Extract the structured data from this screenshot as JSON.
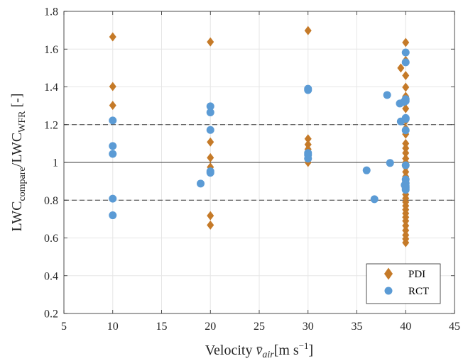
{
  "chart_data": {
    "type": "scatter",
    "xlim": [
      5,
      45
    ],
    "ylim": [
      0.2,
      1.8
    ],
    "x_ticks": [
      5,
      10,
      15,
      20,
      25,
      30,
      35,
      40,
      45
    ],
    "y_ticks": [
      0.2,
      0.4,
      0.6,
      0.8,
      1.0,
      1.2,
      1.4,
      1.6,
      1.8
    ],
    "x_tick_labels": [
      "5",
      "10",
      "15",
      "20",
      "25",
      "30",
      "35",
      "40",
      "45"
    ],
    "y_tick_labels": [
      "0.2",
      "0.4",
      "0.6",
      "0.8",
      "1",
      "1.2",
      "1.4",
      "1.6",
      "1.8"
    ],
    "grid": true,
    "xlabel": {
      "prefix": "Velocity ",
      "symbol": "v̄",
      "subscript": "air",
      "unit": "[m s",
      "unit_exp": "−1",
      "unit_close": "]"
    },
    "ylabel": {
      "part1": "LWC",
      "sub1": "compare",
      "part2": "/LWC",
      "sub2": "WFR",
      "part3": " [-]"
    },
    "reference_lines": [
      {
        "y": 1.0,
        "style": "solid"
      },
      {
        "y": 1.2,
        "style": "dashed"
      },
      {
        "y": 0.8,
        "style": "dashed"
      }
    ],
    "legend_position": "bottom-right",
    "series": [
      {
        "name": "PDI",
        "marker": "diamond",
        "color": "#c57a28",
        "points": [
          [
            10,
            1.665
          ],
          [
            10,
            1.402
          ],
          [
            10,
            1.302
          ],
          [
            20,
            1.638
          ],
          [
            20,
            1.108
          ],
          [
            20,
            1.025
          ],
          [
            20,
            0.975
          ],
          [
            20,
            0.718
          ],
          [
            20,
            0.668
          ],
          [
            30,
            1.698
          ],
          [
            30,
            1.125
          ],
          [
            30,
            1.095
          ],
          [
            30,
            1.07
          ],
          [
            30,
            1.048
          ],
          [
            30,
            1.028
          ],
          [
            30,
            1.0
          ],
          [
            39.5,
            1.5
          ],
          [
            40,
            1.635
          ],
          [
            40,
            1.54
          ],
          [
            40,
            1.46
          ],
          [
            40,
            1.398
          ],
          [
            40,
            1.35
          ],
          [
            40,
            1.32
          ],
          [
            40,
            1.285
          ],
          [
            40,
            1.22
          ],
          [
            40,
            1.18
          ],
          [
            40,
            1.15
          ],
          [
            40,
            1.1
          ],
          [
            40,
            1.075
          ],
          [
            40,
            1.05
          ],
          [
            40,
            1.02
          ],
          [
            40,
            1.0
          ],
          [
            40,
            0.975
          ],
          [
            40,
            0.95
          ],
          [
            40,
            0.925
          ],
          [
            40,
            0.9
          ],
          [
            40,
            0.87
          ],
          [
            40,
            0.85
          ],
          [
            40,
            0.83
          ],
          [
            40,
            0.81
          ],
          [
            40,
            0.79
          ],
          [
            40,
            0.77
          ],
          [
            40,
            0.75
          ],
          [
            40,
            0.73
          ],
          [
            40,
            0.71
          ],
          [
            40,
            0.69
          ],
          [
            40,
            0.665
          ],
          [
            40,
            0.64
          ],
          [
            40,
            0.615
          ],
          [
            40,
            0.595
          ],
          [
            40,
            0.575
          ]
        ]
      },
      {
        "name": "RCT",
        "marker": "circle",
        "color": "#5b9bd5",
        "points": [
          [
            10,
            1.222
          ],
          [
            10,
            1.087
          ],
          [
            10,
            1.045
          ],
          [
            10,
            0.808
          ],
          [
            10,
            0.72
          ],
          [
            19,
            0.888
          ],
          [
            20,
            1.297
          ],
          [
            20,
            1.265
          ],
          [
            20,
            1.172
          ],
          [
            20,
            0.953
          ],
          [
            20,
            0.945
          ],
          [
            30,
            1.39
          ],
          [
            30,
            1.383
          ],
          [
            30,
            1.05
          ],
          [
            30,
            1.04
          ],
          [
            30,
            1.02
          ],
          [
            36,
            0.958
          ],
          [
            36.8,
            0.805
          ],
          [
            38.1,
            1.357
          ],
          [
            38.4,
            0.997
          ],
          [
            39.4,
            1.312
          ],
          [
            39.5,
            1.217
          ],
          [
            39.8,
            1.32
          ],
          [
            40,
            1.582
          ],
          [
            40,
            1.53
          ],
          [
            40,
            1.335
          ],
          [
            40,
            1.325
          ],
          [
            40,
            1.235
          ],
          [
            40,
            1.23
          ],
          [
            40,
            1.17
          ],
          [
            40,
            0.985
          ],
          [
            40,
            0.91
          ],
          [
            40,
            0.89
          ],
          [
            40,
            0.875
          ],
          [
            40,
            0.865
          ],
          [
            40,
            0.855
          ],
          [
            39.9,
            0.88
          ]
        ]
      }
    ]
  }
}
